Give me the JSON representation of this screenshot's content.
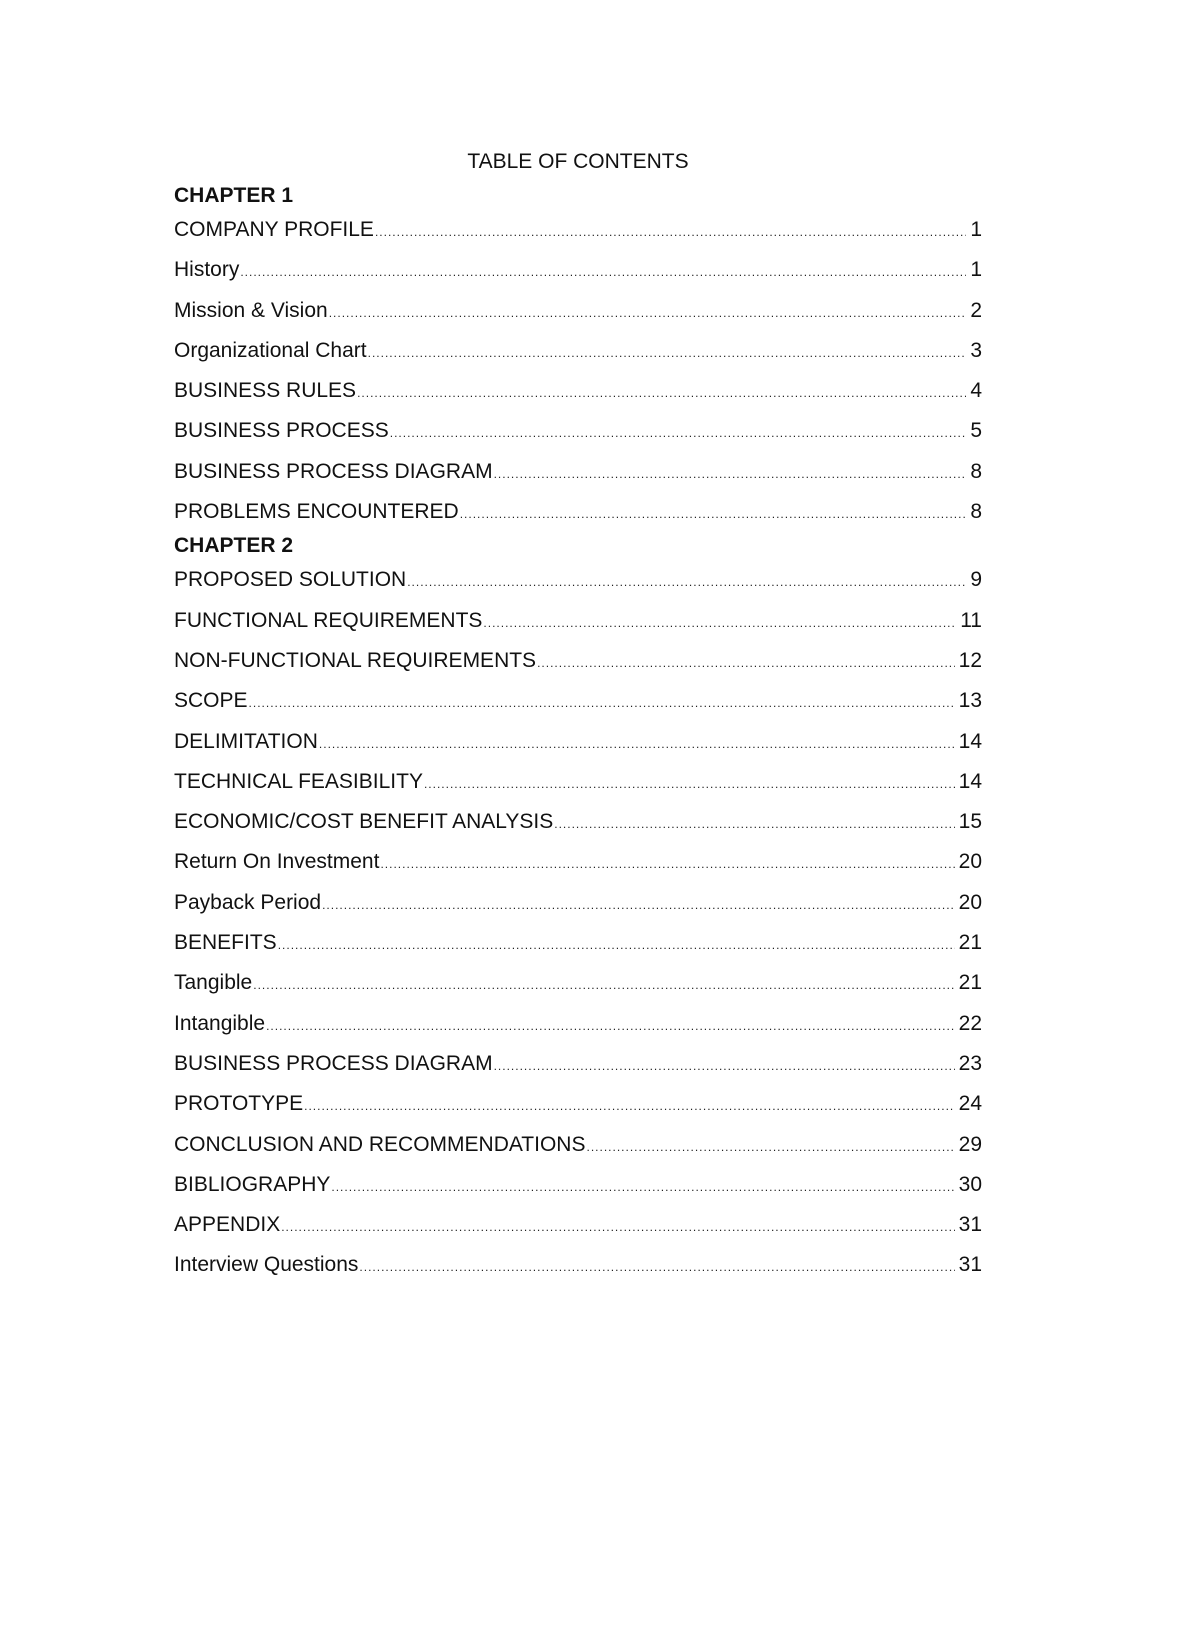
{
  "title": "TABLE OF CONTENTS",
  "sections": [
    {
      "chapter": "CHAPTER 1",
      "entries": [
        {
          "label": "COMPANY PROFILE",
          "page": "1"
        },
        {
          "label": "History",
          "page": "1"
        },
        {
          "label": "Mission & Vision",
          "page": "2"
        },
        {
          "label": "Organizational Chart",
          "page": "3"
        },
        {
          "label": "BUSINESS RULES",
          "page": "4"
        },
        {
          "label": "BUSINESS PROCESS",
          "page": "5"
        },
        {
          "label": "BUSINESS PROCESS DIAGRAM",
          "page": "8"
        },
        {
          "label": "PROBLEMS ENCOUNTERED",
          "page": "8"
        }
      ]
    },
    {
      "chapter": "CHAPTER 2",
      "entries": [
        {
          "label": "PROPOSED SOLUTION",
          "page": "9"
        },
        {
          "label": "FUNCTIONAL REQUIREMENTS",
          "page": "11"
        },
        {
          "label": "NON-FUNCTIONAL REQUIREMENTS",
          "page": "12"
        },
        {
          "label": "SCOPE",
          "page": "13"
        },
        {
          "label": "DELIMITATION",
          "page": "14"
        },
        {
          "label": "TECHNICAL FEASIBILITY",
          "page": "14"
        },
        {
          "label": "ECONOMIC/COST BENEFIT ANALYSIS",
          "page": "15"
        },
        {
          "label": "Return On Investment",
          "page": "20"
        },
        {
          "label": "Payback Period",
          "page": "20"
        },
        {
          "label": "BENEFITS",
          "page": "21"
        },
        {
          "label": "Tangible",
          "page": "21"
        },
        {
          "label": "Intangible",
          "page": "22"
        },
        {
          "label": "BUSINESS PROCESS DIAGRAM",
          "page": "23"
        },
        {
          "label": "PROTOTYPE",
          "page": "24"
        },
        {
          "label": "CONCLUSION AND RECOMMENDATIONS",
          "page": "29"
        },
        {
          "label": "BIBLIOGRAPHY",
          "page": "30"
        },
        {
          "label": "APPENDIX",
          "page": "31"
        },
        {
          "label": "Interview Questions",
          "page": "31"
        }
      ]
    }
  ]
}
